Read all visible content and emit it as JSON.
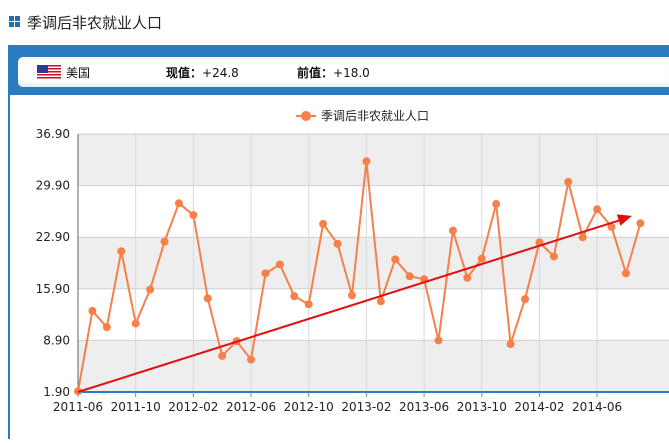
{
  "page": {
    "title": "季调后非农就业人口"
  },
  "info": {
    "country": "美国",
    "current_label": "现值：",
    "current_value": "+24.8",
    "previous_label": "前值：",
    "previous_value": "+18.0"
  },
  "colors": {
    "series": "#f5804a",
    "trend": "#e01010",
    "panel": "#2a7bc1",
    "band": "#eeeeee"
  },
  "chart_data": {
    "type": "line",
    "title": "",
    "legend": "季调后非农就业人口",
    "legend_position": "top-center",
    "xlabel": "",
    "ylabel": "",
    "ylim": [
      1.9,
      36.9
    ],
    "yticks": [
      "1.90",
      "8.90",
      "15.90",
      "22.90",
      "29.90",
      "36.90"
    ],
    "xticks": [
      "2011-06",
      "2011-10",
      "2012-02",
      "2012-06",
      "2012-10",
      "2013-02",
      "2013-06",
      "2013-10",
      "2014-02",
      "2014-06"
    ],
    "grid": true,
    "series": [
      {
        "name": "季调后非农就业人口",
        "x": [
          "2011-06",
          "2011-07",
          "2011-08",
          "2011-09",
          "2011-10",
          "2011-11",
          "2011-12",
          "2012-01",
          "2012-02",
          "2012-03",
          "2012-04",
          "2012-05",
          "2012-06",
          "2012-07",
          "2012-08",
          "2012-09",
          "2012-10",
          "2012-11",
          "2012-12",
          "2013-01",
          "2013-02",
          "2013-03",
          "2013-04",
          "2013-05",
          "2013-06",
          "2013-07",
          "2013-08",
          "2013-09",
          "2013-10",
          "2013-11",
          "2013-12",
          "2014-01",
          "2014-02",
          "2014-03",
          "2014-04",
          "2014-05",
          "2014-06",
          "2014-07",
          "2014-08",
          "2014-09"
        ],
        "values": [
          2.0,
          12.9,
          10.7,
          21.0,
          11.2,
          15.8,
          22.3,
          27.5,
          25.9,
          14.6,
          6.8,
          8.8,
          6.3,
          18.0,
          19.2,
          14.9,
          13.8,
          24.7,
          22.0,
          15.0,
          33.2,
          14.2,
          19.9,
          17.6,
          17.2,
          8.9,
          23.8,
          17.4,
          20.0,
          27.4,
          8.4,
          14.5,
          22.2,
          20.3,
          30.4,
          22.9,
          26.7,
          24.3,
          18.0,
          24.8
        ]
      }
    ],
    "annotations": [
      {
        "type": "arrow",
        "from": [
          "2011-06",
          1.9
        ],
        "to": [
          "2014-08",
          25.8
        ]
      }
    ]
  }
}
